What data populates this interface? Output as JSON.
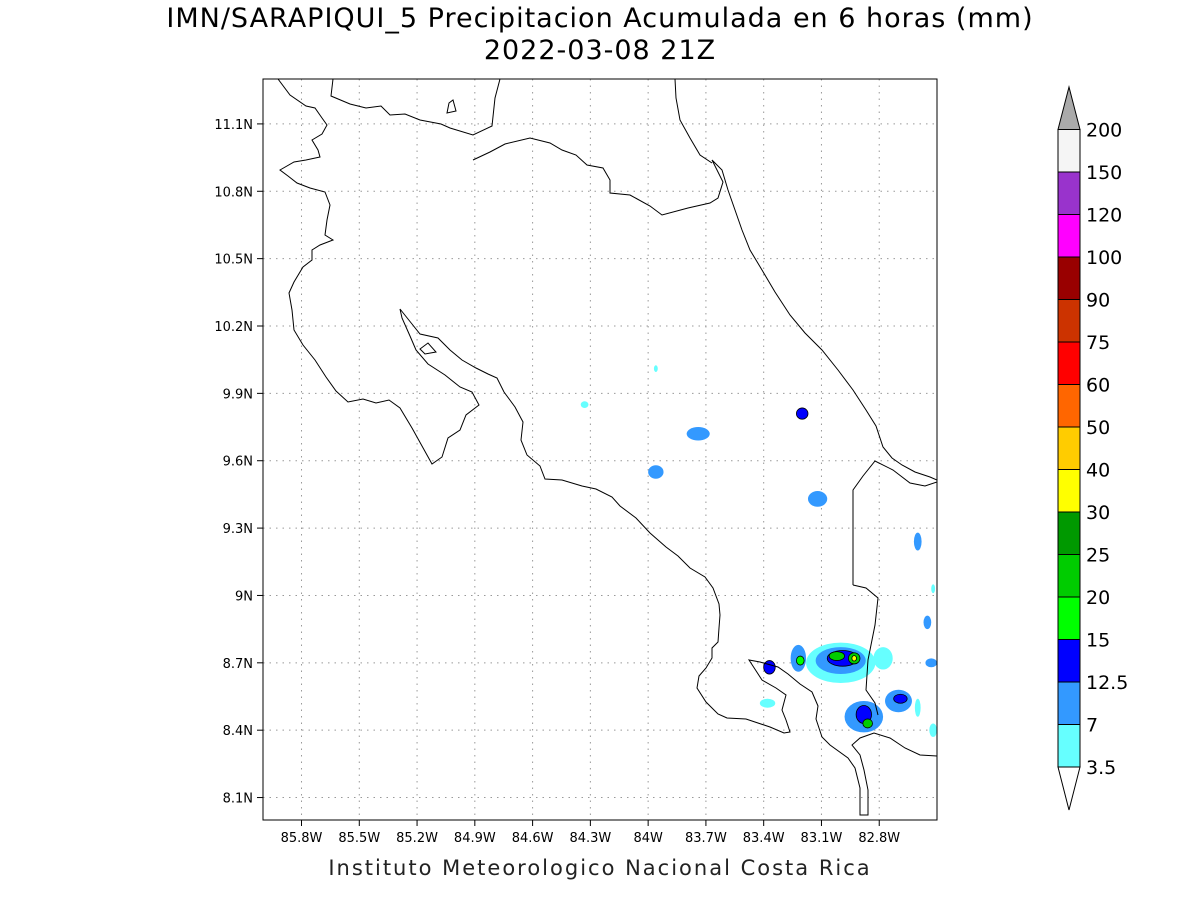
{
  "title": {
    "line1": "IMN/SARAPIQUI_5 Precipitacion Acumulada en 6 horas (mm)",
    "line2": "2022-03-08 21Z"
  },
  "credit": "Instituto Meteorologico Nacional Costa Rica",
  "map": {
    "lon_range": [
      -86.0,
      -82.5
    ],
    "lat_range": [
      8.0,
      11.3
    ],
    "lon_ticks": [
      {
        "value": -85.8,
        "label": "85.8W"
      },
      {
        "value": -85.5,
        "label": "85.5W"
      },
      {
        "value": -85.2,
        "label": "85.2W"
      },
      {
        "value": -84.9,
        "label": "84.9W"
      },
      {
        "value": -84.6,
        "label": "84.6W"
      },
      {
        "value": -84.3,
        "label": "84.3W"
      },
      {
        "value": -84.0,
        "label": "84W"
      },
      {
        "value": -83.7,
        "label": "83.7W"
      },
      {
        "value": -83.4,
        "label": "83.4W"
      },
      {
        "value": -83.1,
        "label": "83.1W"
      },
      {
        "value": -82.8,
        "label": "82.8W"
      }
    ],
    "lat_ticks": [
      {
        "value": 11.1,
        "label": "11.1N"
      },
      {
        "value": 10.8,
        "label": "10.8N"
      },
      {
        "value": 10.5,
        "label": "10.5N"
      },
      {
        "value": 10.2,
        "label": "10.2N"
      },
      {
        "value": 9.9,
        "label": "9.9N"
      },
      {
        "value": 9.6,
        "label": "9.6N"
      },
      {
        "value": 9.3,
        "label": "9.3N"
      },
      {
        "value": 9.0,
        "label": "9N"
      },
      {
        "value": 8.7,
        "label": "8.7N"
      },
      {
        "value": 8.4,
        "label": "8.4N"
      },
      {
        "value": 8.1,
        "label": "8.1N"
      }
    ],
    "grid": "dotted"
  },
  "colorbar": {
    "levels": [
      "3.5",
      "7",
      "12.5",
      "15",
      "20",
      "25",
      "30",
      "40",
      "50",
      "60",
      "75",
      "90",
      "100",
      "120",
      "150",
      "200"
    ],
    "colors": [
      "#ffffff",
      "#66ffff",
      "#3399ff",
      "#0000ff",
      "#00ff00",
      "#00cc00",
      "#009900",
      "#ffff00",
      "#ffcc00",
      "#ff6600",
      "#ff0000",
      "#cc3300",
      "#990000",
      "#ff00ff",
      "#9933cc",
      "#f5f5f5",
      "#aaaaaa"
    ]
  },
  "precip_cells": [
    {
      "lon": -84.33,
      "lat": 9.85,
      "rx": 0.02,
      "ry": 0.015,
      "level": 1
    },
    {
      "lon": -83.96,
      "lat": 10.01,
      "rx": 0.01,
      "ry": 0.015,
      "level": 1
    },
    {
      "lon": -83.74,
      "lat": 9.72,
      "rx": 0.06,
      "ry": 0.03,
      "level": 2
    },
    {
      "lon": -83.96,
      "lat": 9.55,
      "rx": 0.04,
      "ry": 0.03,
      "level": 2
    },
    {
      "lon": -83.2,
      "lat": 9.81,
      "rx": 0.03,
      "ry": 0.025,
      "level": 3
    },
    {
      "lon": -83.12,
      "lat": 9.43,
      "rx": 0.05,
      "ry": 0.035,
      "level": 2
    },
    {
      "lon": -82.6,
      "lat": 9.24,
      "rx": 0.02,
      "ry": 0.04,
      "level": 2
    },
    {
      "lon": -82.55,
      "lat": 8.88,
      "rx": 0.02,
      "ry": 0.03,
      "level": 2
    },
    {
      "lon": -82.53,
      "lat": 8.7,
      "rx": 0.03,
      "ry": 0.02,
      "level": 2
    },
    {
      "lon": -82.52,
      "lat": 9.03,
      "rx": 0.01,
      "ry": 0.02,
      "level": 1
    },
    {
      "lon": -83.37,
      "lat": 8.68,
      "rx": 0.03,
      "ry": 0.03,
      "level": 3
    },
    {
      "lon": -83.38,
      "lat": 8.52,
      "rx": 0.04,
      "ry": 0.02,
      "level": 1
    },
    {
      "lon": -83.22,
      "lat": 8.72,
      "rx": 0.04,
      "ry": 0.06,
      "level": 2
    },
    {
      "lon": -83.21,
      "lat": 8.71,
      "rx": 0.02,
      "ry": 0.02,
      "level": 4
    },
    {
      "lon": -83.0,
      "lat": 8.7,
      "rx": 0.18,
      "ry": 0.09,
      "level": 1
    },
    {
      "lon": -83.0,
      "lat": 8.71,
      "rx": 0.13,
      "ry": 0.06,
      "level": 2
    },
    {
      "lon": -82.99,
      "lat": 8.72,
      "rx": 0.08,
      "ry": 0.035,
      "level": 3
    },
    {
      "lon": -83.02,
      "lat": 8.73,
      "rx": 0.04,
      "ry": 0.02,
      "level": 5
    },
    {
      "lon": -82.93,
      "lat": 8.72,
      "rx": 0.03,
      "ry": 0.025,
      "level": 5
    },
    {
      "lon": -82.93,
      "lat": 8.72,
      "rx": 0.012,
      "ry": 0.012,
      "level": 7
    },
    {
      "lon": -82.78,
      "lat": 8.72,
      "rx": 0.05,
      "ry": 0.05,
      "level": 1
    },
    {
      "lon": -82.88,
      "lat": 8.46,
      "rx": 0.1,
      "ry": 0.07,
      "level": 2
    },
    {
      "lon": -82.88,
      "lat": 8.47,
      "rx": 0.04,
      "ry": 0.04,
      "level": 3
    },
    {
      "lon": -82.86,
      "lat": 8.43,
      "rx": 0.025,
      "ry": 0.02,
      "level": 5
    },
    {
      "lon": -82.7,
      "lat": 8.53,
      "rx": 0.07,
      "ry": 0.05,
      "level": 2
    },
    {
      "lon": -82.69,
      "lat": 8.54,
      "rx": 0.035,
      "ry": 0.02,
      "level": 3
    },
    {
      "lon": -82.6,
      "lat": 8.5,
      "rx": 0.015,
      "ry": 0.04,
      "level": 1
    },
    {
      "lon": -82.52,
      "lat": 8.4,
      "rx": 0.02,
      "ry": 0.03,
      "level": 1
    }
  ]
}
